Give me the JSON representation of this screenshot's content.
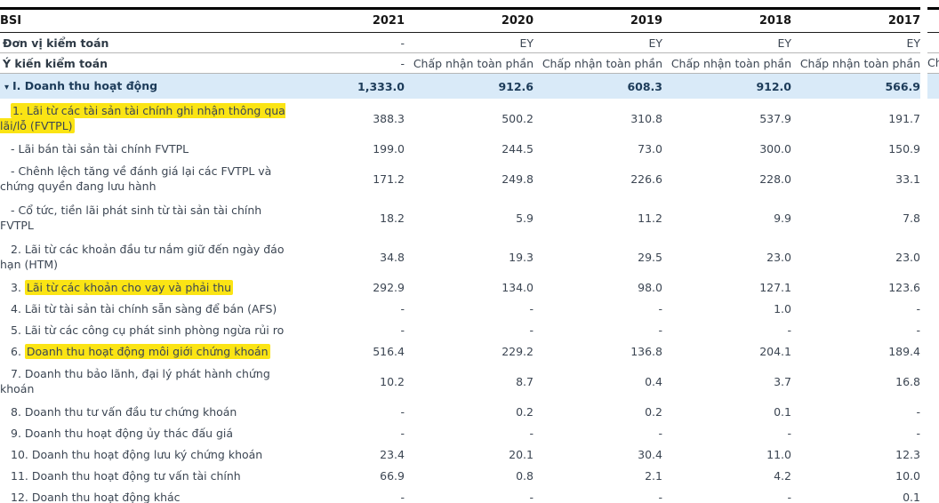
{
  "table": {
    "company": "BSI",
    "years": [
      "2021",
      "2020",
      "2019",
      "2018",
      "2017"
    ],
    "audit_unit": {
      "label": "Đơn vị kiểm toán",
      "values": [
        "-",
        "EY",
        "EY",
        "EY",
        "EY"
      ]
    },
    "audit_opinion": {
      "label": "Ý kiến kiểm toán",
      "values": [
        "-",
        "Chấp nhận toàn phần",
        "Chấp nhận toàn phần",
        "Chấp nhận toàn phần",
        "Chấp nhận toàn phần"
      ]
    },
    "section": {
      "icon": "▾",
      "label": "I. Doanh thu hoạt động",
      "values": [
        "1,333.0",
        "912.6",
        "608.3",
        "912.0",
        "566.9"
      ]
    },
    "rows": [
      {
        "pre": "",
        "hl": "1. Lãi từ các tài sản tài chính ghi nhận thông qua\nlãi/lỗ (FVTPL)",
        "two_line": true,
        "values": [
          "388.3",
          "500.2",
          "310.8",
          "537.9",
          "191.7"
        ]
      },
      {
        "pre": "- Lãi bán tài sản tài chính FVTPL",
        "hl": "",
        "two_line": false,
        "values": [
          "199.0",
          "244.5",
          "73.0",
          "300.0",
          "150.9"
        ]
      },
      {
        "pre": "- Chênh lệch tăng về đánh giá lại các FVTPL và\nchứng quyền đang lưu hành",
        "hl": "",
        "two_line": true,
        "values": [
          "171.2",
          "249.8",
          "226.6",
          "228.0",
          "33.1"
        ]
      },
      {
        "pre": "- Cổ tức, tiền lãi phát sinh từ tài sản tài chính\nFVTPL",
        "hl": "",
        "two_line": true,
        "values": [
          "18.2",
          "5.9",
          "11.2",
          "9.9",
          "7.8"
        ]
      },
      {
        "pre": "2. Lãi từ các khoản đầu tư nắm giữ đến ngày đáo\nhạn (HTM)",
        "hl": "",
        "two_line": true,
        "values": [
          "34.8",
          "19.3",
          "29.5",
          "23.0",
          "23.0"
        ]
      },
      {
        "pre": "3. ",
        "hl": "Lãi từ các khoản cho vay và phải thu",
        "two_line": false,
        "values": [
          "292.9",
          "134.0",
          "98.0",
          "127.1",
          "123.6"
        ]
      },
      {
        "pre": "4. Lãi từ tài sản tài chính sẵn sàng để bán (AFS)",
        "hl": "",
        "two_line": false,
        "values": [
          "-",
          "-",
          "-",
          "1.0",
          "-"
        ]
      },
      {
        "pre": "5. Lãi từ các công cụ phát sinh phòng ngừa rủi ro",
        "hl": "",
        "two_line": false,
        "values": [
          "-",
          "-",
          "-",
          "-",
          "-"
        ]
      },
      {
        "pre": "6. ",
        "hl": "Doanh thu hoạt động môi giới chứng khoán",
        "two_line": false,
        "values": [
          "516.4",
          "229.2",
          "136.8",
          "204.1",
          "189.4"
        ]
      },
      {
        "pre": "7. Doanh thu bảo lãnh, đại lý phát hành chứng\nkhoán",
        "hl": "",
        "two_line": true,
        "values": [
          "10.2",
          "8.7",
          "0.4",
          "3.7",
          "16.8"
        ]
      },
      {
        "pre": "8. Doanh thu tư vấn đầu tư chứng khoán",
        "hl": "",
        "two_line": false,
        "values": [
          "-",
          "0.2",
          "0.2",
          "0.1",
          "-"
        ]
      },
      {
        "pre": "9. Doanh thu hoạt động ủy thác đấu giá",
        "hl": "",
        "two_line": false,
        "values": [
          "-",
          "-",
          "-",
          "-",
          "-"
        ]
      },
      {
        "pre": "10. Doanh thu hoạt động lưu ký chứng khoán",
        "hl": "",
        "two_line": false,
        "values": [
          "23.4",
          "20.1",
          "30.4",
          "11.0",
          "12.3"
        ]
      },
      {
        "pre": "11. Doanh thu hoạt động tư vấn tài chính",
        "hl": "",
        "two_line": false,
        "values": [
          "66.9",
          "0.8",
          "2.1",
          "4.2",
          "10.0"
        ]
      },
      {
        "pre": "12. Doanh thu hoạt động khác",
        "hl": "",
        "two_line": false,
        "values": [
          "-",
          "-",
          "-",
          "-",
          "0.1"
        ]
      }
    ],
    "clipped_column": {
      "opinion_partial": "Chấ"
    }
  },
  "colors": {
    "section_row_bg": "#d9eaf8",
    "highlight_marker": "#fbe414",
    "header_border": "#000000",
    "separator": "#b6b6b6",
    "body_text": "#3c4653"
  }
}
